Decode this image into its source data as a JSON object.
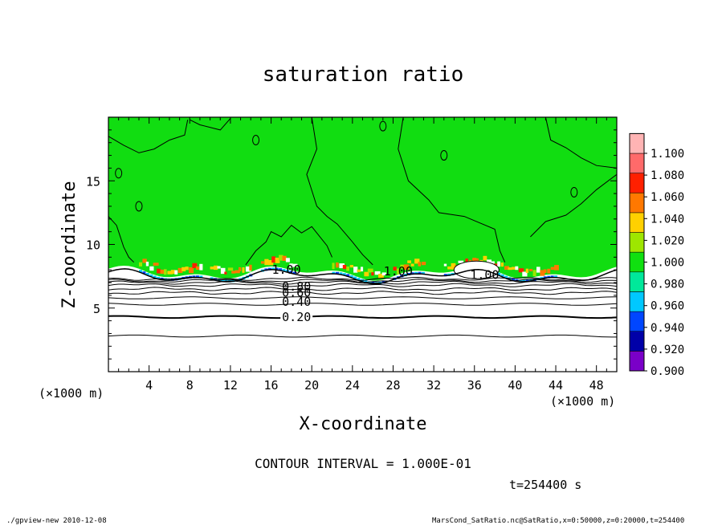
{
  "chart_data": {
    "type": "heatmap",
    "title": "saturation ratio",
    "xlabel": "X-coordinate",
    "ylabel": "Z-coordinate",
    "x_unit": "(×1000 m)",
    "y_unit": "(×1000 m)",
    "xlim": [
      0,
      50
    ],
    "ylim": [
      0,
      20
    ],
    "x_ticks": [
      "4",
      "8",
      "12",
      "16",
      "20",
      "24",
      "28",
      "32",
      "36",
      "40",
      "44",
      "48"
    ],
    "y_ticks": [
      "5",
      "10",
      "15"
    ],
    "contour_labels": [
      "0.20",
      "0.40",
      "0.60",
      "0.80",
      "1.00",
      "1.00",
      "1.00"
    ],
    "contour_interval_text": "CONTOUR INTERVAL = 1.000E-01",
    "time_text": "t=254400 s",
    "footer_left": "./gpview-new   2010-12-08",
    "footer_right": "MarsCond_SatRatio.nc@SatRatio,x=0:50000,z=0:20000,t=254400",
    "colorbar": {
      "levels": [
        "0.900",
        "0.920",
        "0.940",
        "0.960",
        "0.980",
        "1.000",
        "1.020",
        "1.040",
        "1.060",
        "1.080",
        "1.100"
      ],
      "colors": [
        "#7a00c8",
        "#0000a8",
        "#0046ff",
        "#00c8ff",
        "#00e89a",
        "#10e010",
        "#9ee600",
        "#ffd000",
        "#ff7800",
        "#ff2000",
        "#ff6a6a",
        "#ffb4b4"
      ]
    },
    "grid": false,
    "colors": {
      "saturated": "#11dd11",
      "subsaturated": "#ffffff",
      "contour": "#000000"
    }
  }
}
